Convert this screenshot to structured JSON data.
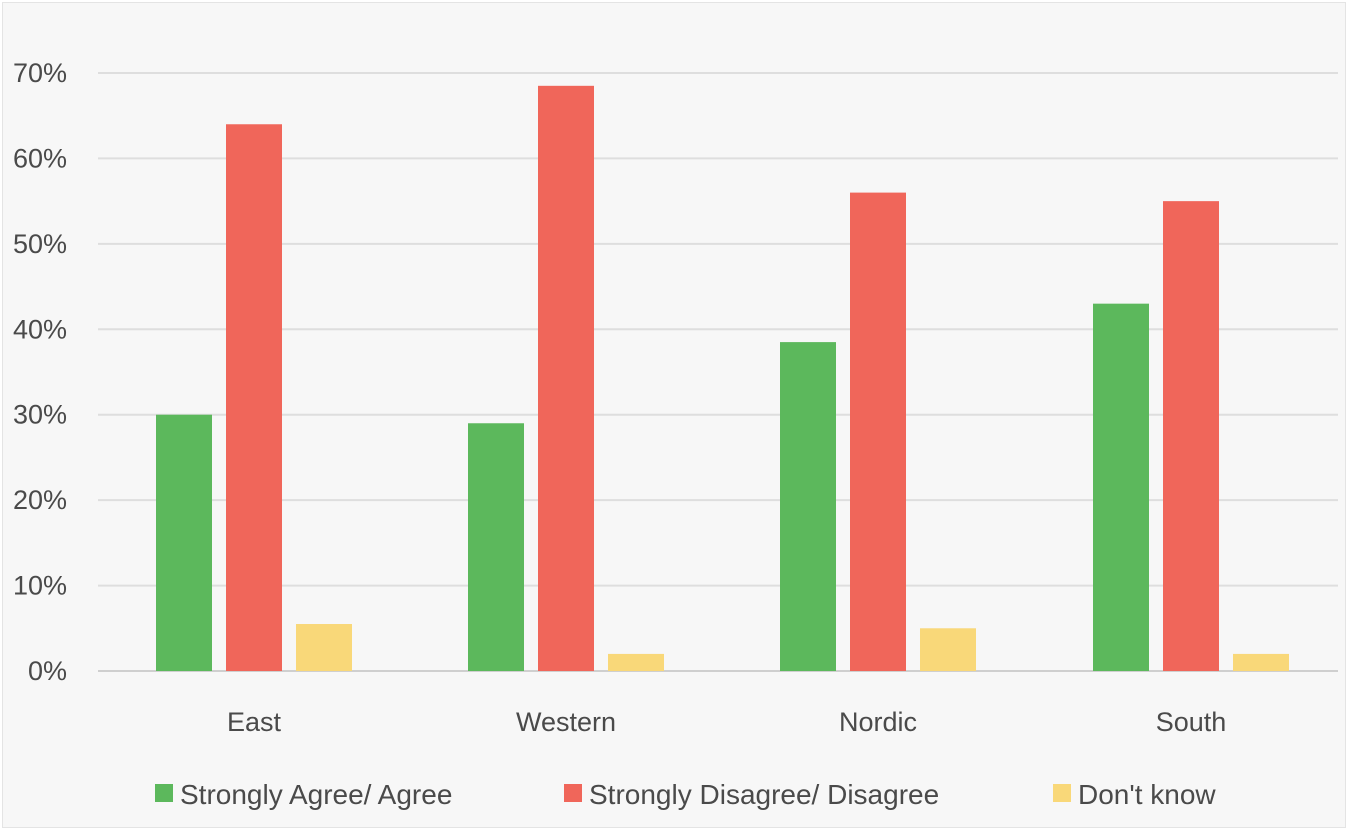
{
  "chart_data": {
    "type": "bar",
    "title": "",
    "xlabel": "",
    "ylabel": "",
    "categories": [
      "East",
      "Western",
      "Nordic",
      "South"
    ],
    "series": [
      {
        "name": "Strongly Agree/ Agree",
        "color": "#5cb85c",
        "values": [
          30,
          29,
          38.5,
          43
        ]
      },
      {
        "name": "Strongly Disagree/ Disagree",
        "color": "#f0665a",
        "values": [
          64,
          68.5,
          56,
          55
        ]
      },
      {
        "name": "Don't know",
        "color": "#f9d879",
        "values": [
          5.5,
          2,
          5,
          2
        ]
      }
    ],
    "ylim": [
      0,
      70
    ],
    "yticks": [
      0,
      10,
      20,
      30,
      40,
      50,
      60,
      70
    ],
    "ytick_labels": [
      "0%",
      "10%",
      "20%",
      "30%",
      "40%",
      "50%",
      "60%",
      "70%"
    ],
    "grid": true,
    "legend": "bottom"
  }
}
